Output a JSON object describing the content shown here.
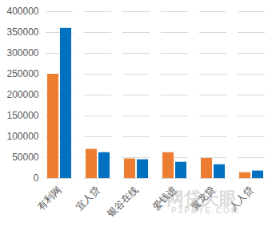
{
  "chart_data": {
    "type": "bar",
    "categories": [
      "有利网",
      "宜人贷",
      "银谷在线",
      "爱钱进",
      "翼龙贷",
      "人人贷"
    ],
    "series": [
      {
        "color": "#ed7d31",
        "values": [
          250000,
          70000,
          47000,
          62000,
          48000,
          14000
        ]
      },
      {
        "color": "#0070c0",
        "values": [
          360000,
          62000,
          45000,
          39000,
          33000,
          18000
        ]
      }
    ],
    "ylim": [
      0,
      400000
    ],
    "yticks": [
      0,
      50000,
      100000,
      150000,
      200000,
      250000,
      300000,
      350000,
      400000
    ],
    "grid": true,
    "annotations": [
      "网贷天眼",
      "P2PEYE.COM"
    ]
  }
}
